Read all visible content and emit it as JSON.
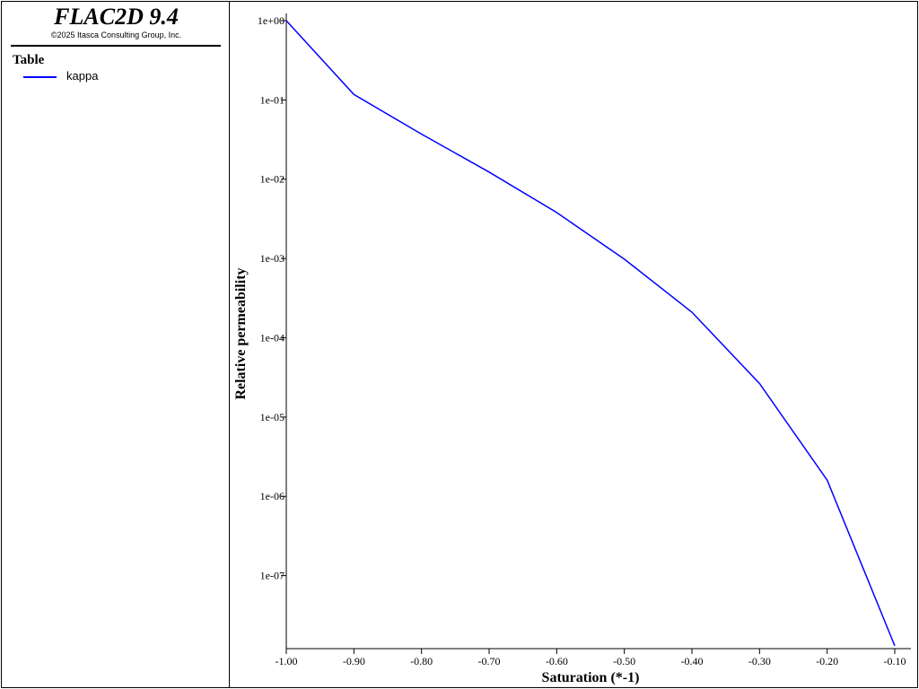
{
  "app": {
    "title": "FLAC2D 9.4",
    "copyright": "©2025 Itasca Consulting Group, Inc."
  },
  "legend": {
    "heading": "Table",
    "items": [
      {
        "label": "kappa",
        "color": "#0000ff"
      }
    ]
  },
  "chart_data": {
    "type": "line",
    "xlabel": "Saturation (*-1)",
    "ylabel": "Relative permeability",
    "xlim": [
      -1.0,
      -0.1
    ],
    "ylim": [
      1.2e-08,
      1.0
    ],
    "yscale": "log",
    "grid": false,
    "legend_position": "left-panel",
    "x_ticks": [
      "-1.00",
      "-0.90",
      "-0.80",
      "-0.70",
      "-0.60",
      "-0.50",
      "-0.40",
      "-0.30",
      "-0.20",
      "-0.10"
    ],
    "y_ticks": [
      "1e+00",
      "1e-01",
      "1e-02",
      "1e-03",
      "1e-04",
      "1e-05",
      "1e-06",
      "1e-07"
    ],
    "series": [
      {
        "name": "kappa",
        "color": "#0000ff",
        "x": [
          -1.0,
          -0.9,
          -0.8,
          -0.7,
          -0.6,
          -0.5,
          -0.4,
          -0.3,
          -0.2,
          -0.1
        ],
        "y": [
          1.0,
          0.117,
          0.037,
          0.0123,
          0.0038,
          0.00098,
          0.00021,
          2.65e-05,
          1.6e-06,
          1.3e-08
        ]
      }
    ]
  }
}
